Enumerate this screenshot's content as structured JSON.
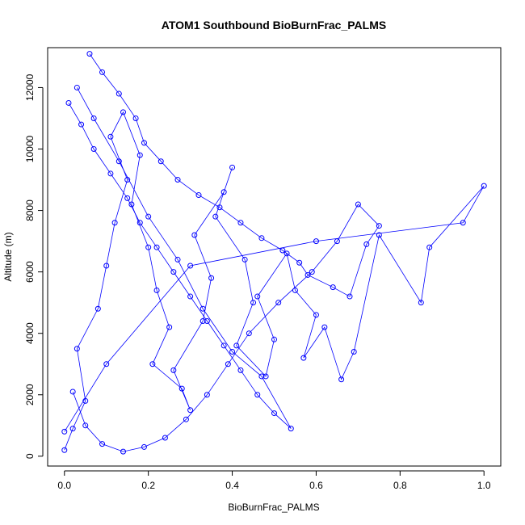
{
  "chart_data": {
    "type": "scatter",
    "title": "ATOM1 Southbound BioBurnFrac_PALMS",
    "xlabel": "BioBurnFrac_PALMS",
    "ylabel": "Altitude (m)",
    "xlim": [
      -0.04,
      1.04
    ],
    "ylim": [
      -320,
      13300
    ],
    "x_ticks": [
      0.0,
      0.2,
      0.4,
      0.6,
      0.8,
      1.0
    ],
    "x_tick_labels": [
      "0.0",
      "0.2",
      "0.4",
      "0.6",
      "0.8",
      "1.0"
    ],
    "y_ticks": [
      0,
      2000,
      4000,
      6000,
      8000,
      10000,
      12000
    ],
    "y_tick_labels": [
      "0",
      "2000",
      "4000",
      "6000",
      "8000",
      "10000",
      "12000"
    ],
    "grid": false,
    "legend": "none",
    "marker": "open-circle",
    "connected": true,
    "color": "#0000ff",
    "series": [
      {
        "x": [
          0.0,
          0.02,
          0.05,
          0.03,
          0.08,
          0.1,
          0.12,
          0.15,
          0.11,
          0.14,
          0.18,
          0.16,
          0.2,
          0.22,
          0.25,
          0.21,
          0.28,
          0.3,
          0.26,
          0.33,
          0.35,
          0.31,
          0.38,
          0.4,
          0.36,
          0.43,
          0.45,
          0.41,
          0.48,
          0.5,
          0.46,
          0.53,
          0.55,
          0.6,
          0.57,
          0.62,
          0.66,
          0.69,
          0.75,
          0.85,
          0.87,
          1.0,
          0.95,
          0.6,
          0.3,
          0.1,
          0.0
        ],
        "y": [
          200,
          900,
          1800,
          3500,
          4800,
          6200,
          7600,
          9000,
          10400,
          11200,
          9800,
          8200,
          6800,
          5400,
          4200,
          3000,
          2200,
          1500,
          2800,
          4400,
          5800,
          7200,
          8600,
          9400,
          7800,
          6400,
          5000,
          3600,
          2600,
          3800,
          5200,
          6600,
          5400,
          4600,
          3200,
          4200,
          2500,
          3400,
          7200,
          5000,
          6800,
          8800,
          7600,
          7000,
          6200,
          3000,
          800
        ]
      },
      {
        "x": [
          0.06,
          0.09,
          0.13,
          0.17,
          0.19,
          0.23,
          0.27,
          0.32,
          0.37,
          0.42,
          0.47,
          0.52,
          0.56,
          0.58,
          0.64,
          0.68,
          0.72,
          0.75,
          0.7,
          0.65,
          0.59,
          0.51,
          0.44,
          0.39,
          0.34,
          0.29,
          0.24,
          0.19,
          0.14,
          0.09,
          0.05,
          0.02
        ],
        "y": [
          13100,
          12500,
          11800,
          11000,
          10200,
          9600,
          9000,
          8500,
          8100,
          7600,
          7100,
          6700,
          6300,
          5900,
          5500,
          5200,
          6900,
          7500,
          8200,
          7000,
          6000,
          5000,
          4000,
          3000,
          2000,
          1200,
          600,
          300,
          150,
          400,
          1000,
          2100
        ]
      },
      {
        "x": [
          0.01,
          0.04,
          0.07,
          0.11,
          0.15,
          0.18,
          0.22,
          0.26,
          0.3,
          0.34,
          0.38,
          0.42,
          0.46,
          0.5,
          0.54,
          0.47,
          0.4,
          0.33,
          0.27,
          0.2,
          0.13,
          0.07,
          0.03
        ],
        "y": [
          11500,
          10800,
          10000,
          9200,
          8400,
          7600,
          6800,
          6000,
          5200,
          4400,
          3600,
          2800,
          2000,
          1400,
          900,
          2600,
          3400,
          4800,
          6400,
          7800,
          9600,
          11000,
          12000
        ]
      }
    ]
  }
}
